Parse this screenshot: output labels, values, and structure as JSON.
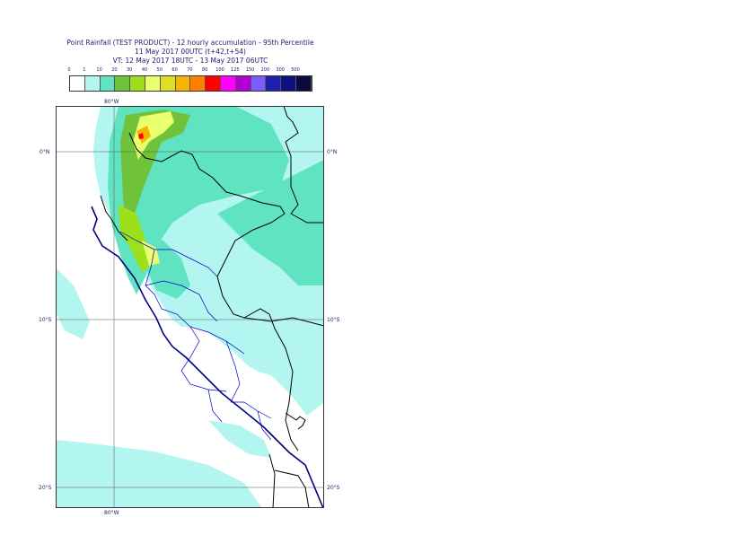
{
  "title": {
    "line1": "Point Rainfall (TEST PRODUCT) - 12 hourly accumulation - 95th Percentile",
    "line2": "11 May 2017 00UTC (t+42,t+54)",
    "line3": "VT: 12 May 2017 18UTC - 13 May 2017 06UTC"
  },
  "legend": {
    "labels": [
      "0",
      "1",
      "10",
      "20",
      "30",
      "40",
      "50",
      "60",
      "70",
      "80",
      "100",
      "125",
      "150",
      "200",
      "300",
      "500"
    ],
    "colors": [
      "#ffffff",
      "#b3f5f0",
      "#5fe3c0",
      "#70c23a",
      "#9be01a",
      "#e8ff70",
      "#e0e022",
      "#f5b400",
      "#ff8000",
      "#ff0000",
      "#ff00ff",
      "#b200d4",
      "#7b5cff",
      "#2020b0",
      "#101080",
      "#0a0a40"
    ]
  },
  "map": {
    "lat_labels": [
      "0°N",
      "10°S",
      "20°S"
    ],
    "lon_labels": [
      "80°W",
      "80°W"
    ],
    "colors": {
      "frame": "#333333",
      "grid": "#555555",
      "coast": "#000080",
      "border": "#000000",
      "region": "#0000cc",
      "light": "#b3f5f0",
      "medium": "#5fe3c0",
      "green": "#70c23a",
      "lime": "#9be01a",
      "yellow": "#e8ff70",
      "orange": "#f5b400",
      "red": "#ff0000"
    }
  }
}
